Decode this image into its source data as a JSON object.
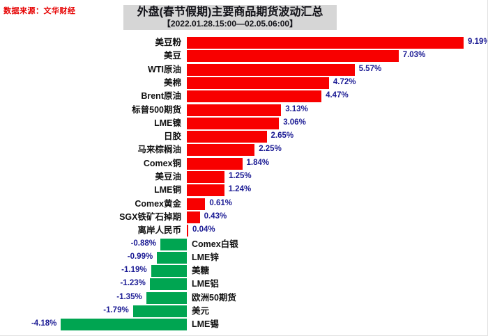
{
  "source_label": "数据来源：文华财经",
  "chart_data": {
    "type": "bar",
    "orientation": "horizontal",
    "title": "外盘(春节假期)主要商品期货波动汇总",
    "subtitle": "【2022.01.28.15:00—02.05.06:00】",
    "unit": "%",
    "value_format": "two-decimal percent",
    "axis": {
      "zero_baseline": true,
      "gridlines": false,
      "xlim": [
        -4.6,
        10.0
      ]
    },
    "legend": "none",
    "categories": [
      "美豆粉",
      "美豆",
      "WTI原油",
      "美棉",
      "Brent原油",
      "标普500期货",
      "LME镍",
      "日胶",
      "马来棕榈油",
      "Comex铜",
      "美豆油",
      "LME铜",
      "Comex黄金",
      "SGX铁矿石掉期",
      "离岸人民币",
      "Comex白银",
      "LME锌",
      "美糖",
      "LME铝",
      "欧洲50期货",
      "美元",
      "LME锡"
    ],
    "values": [
      9.19,
      7.03,
      5.57,
      4.72,
      4.47,
      3.13,
      3.06,
      2.65,
      2.25,
      1.84,
      1.25,
      1.24,
      0.61,
      0.43,
      0.04,
      -0.88,
      -0.99,
      -1.19,
      -1.23,
      -1.35,
      -1.79,
      -4.18
    ],
    "colors": {
      "positive_bar": "#f80000",
      "negative_bar": "#00a551",
      "value_text": "#1b1b94",
      "label_text": "#111111",
      "source_text": "#e60000",
      "title_bg": "#d6d6d6"
    }
  }
}
